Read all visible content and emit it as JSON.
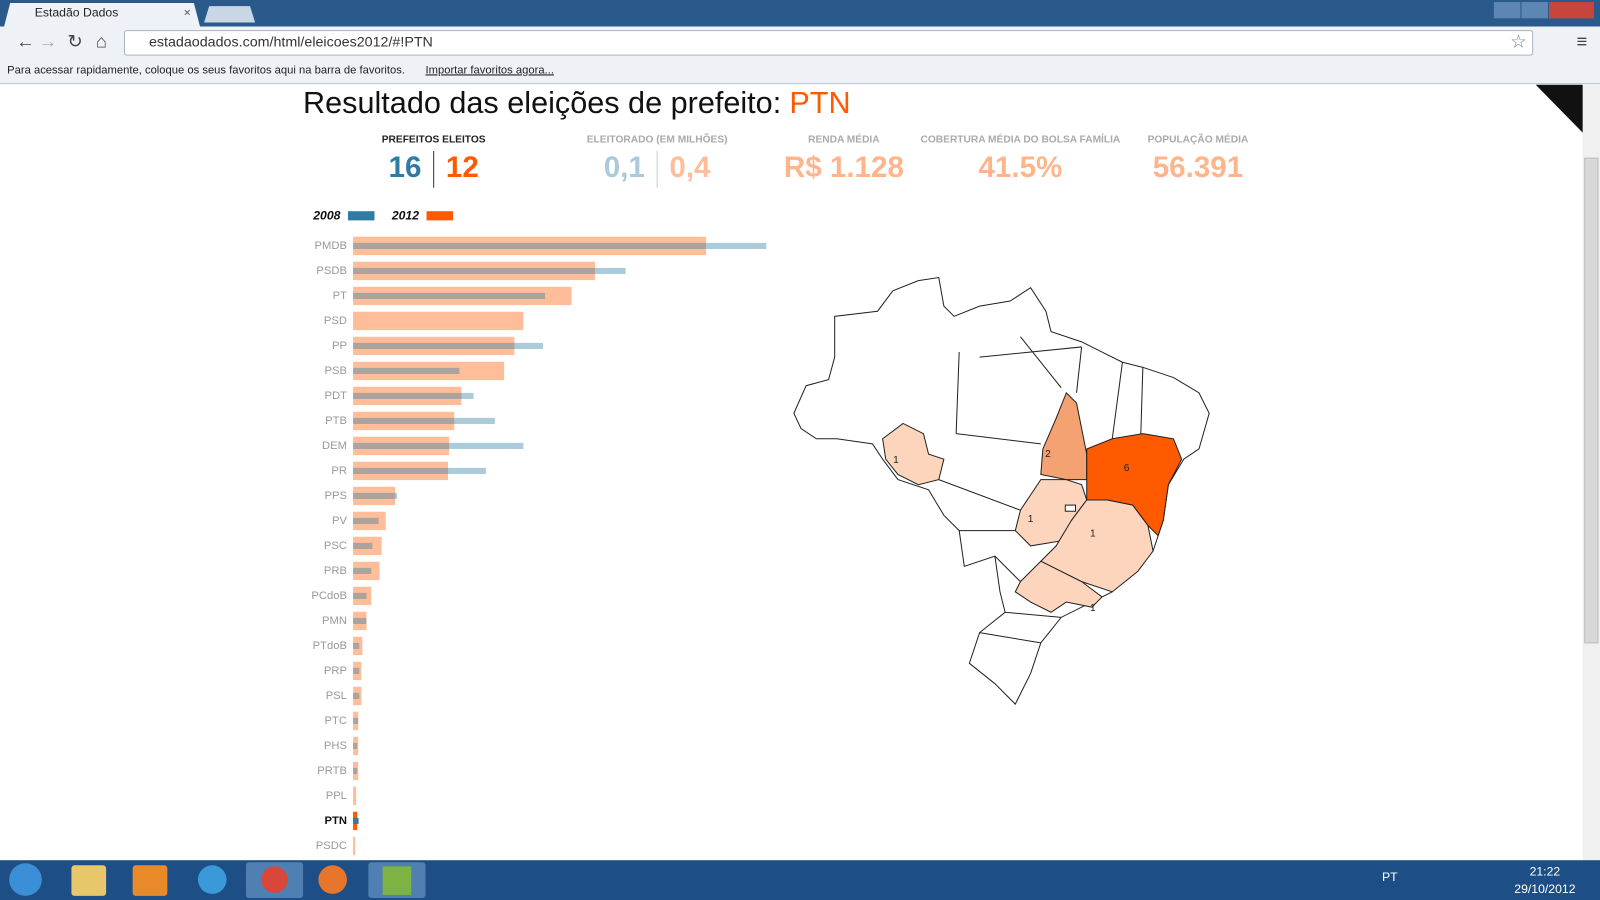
{
  "browser": {
    "tab_title": "Estadão Dados",
    "url": "estadaodados.com/html/eleicoes2012/#!PTN",
    "bookmarks_hint": "Para acessar rapidamente, coloque os seus favoritos aqui na barra de favoritos.",
    "bookmarks_link": "Importar favoritos agora..."
  },
  "page": {
    "title": "Resultado das eleições de prefeito:",
    "party": "PTN",
    "stats": [
      {
        "label": "PREFEITOS ELEITOS",
        "values": [
          16,
          12
        ]
      },
      {
        "label": "ELEITORADO (EM MILHÕES)",
        "values": [
          "0,1",
          "0,4"
        ]
      },
      {
        "label": "RENDA MÉDIA",
        "value": "R$ 1.128"
      },
      {
        "label": "COBERTURA MÉDIA DO BOLSA FAMÍLIA",
        "value": "41.5%"
      },
      {
        "label": "POPULAÇÃO MÉDIA",
        "value": "56.391"
      }
    ]
  },
  "chart_data": {
    "type": "bar",
    "orientation": "horizontal",
    "categories": [
      "PMDB",
      "PSDB",
      "PT",
      "PSD",
      "PP",
      "PSB",
      "PDT",
      "PTB",
      "DEM",
      "PR",
      "PPS",
      "PV",
      "PSC",
      "PRB",
      "PCdoB",
      "PMN",
      "PTdoB",
      "PRP",
      "PSL",
      "PTC",
      "PHS",
      "PRTB",
      "PPL",
      "PTN",
      "PSDC"
    ],
    "series": [
      {
        "name": "2008",
        "color": "#2e7ca3",
        "values": [
          1201,
          792,
          558,
          0,
          552,
          309,
          350,
          412,
          495,
          386,
          128,
          74,
          56,
          53,
          39,
          39,
          18,
          18,
          18,
          15,
          12,
          12,
          0,
          16,
          0
        ]
      },
      {
        "name": "2012",
        "color": "#ff5a00",
        "values": [
          1026,
          703,
          635,
          495,
          469,
          439,
          315,
          294,
          279,
          276,
          122,
          95,
          83,
          77,
          53,
          39,
          27,
          24,
          24,
          15,
          15,
          15,
          9,
          12,
          6
        ]
      }
    ]
  },
  "map": {
    "labels": [
      1,
      2,
      6,
      1,
      1,
      1
    ]
  },
  "taskbar": {
    "language": "PT",
    "time": "21:22",
    "date": "29/10/2012"
  }
}
